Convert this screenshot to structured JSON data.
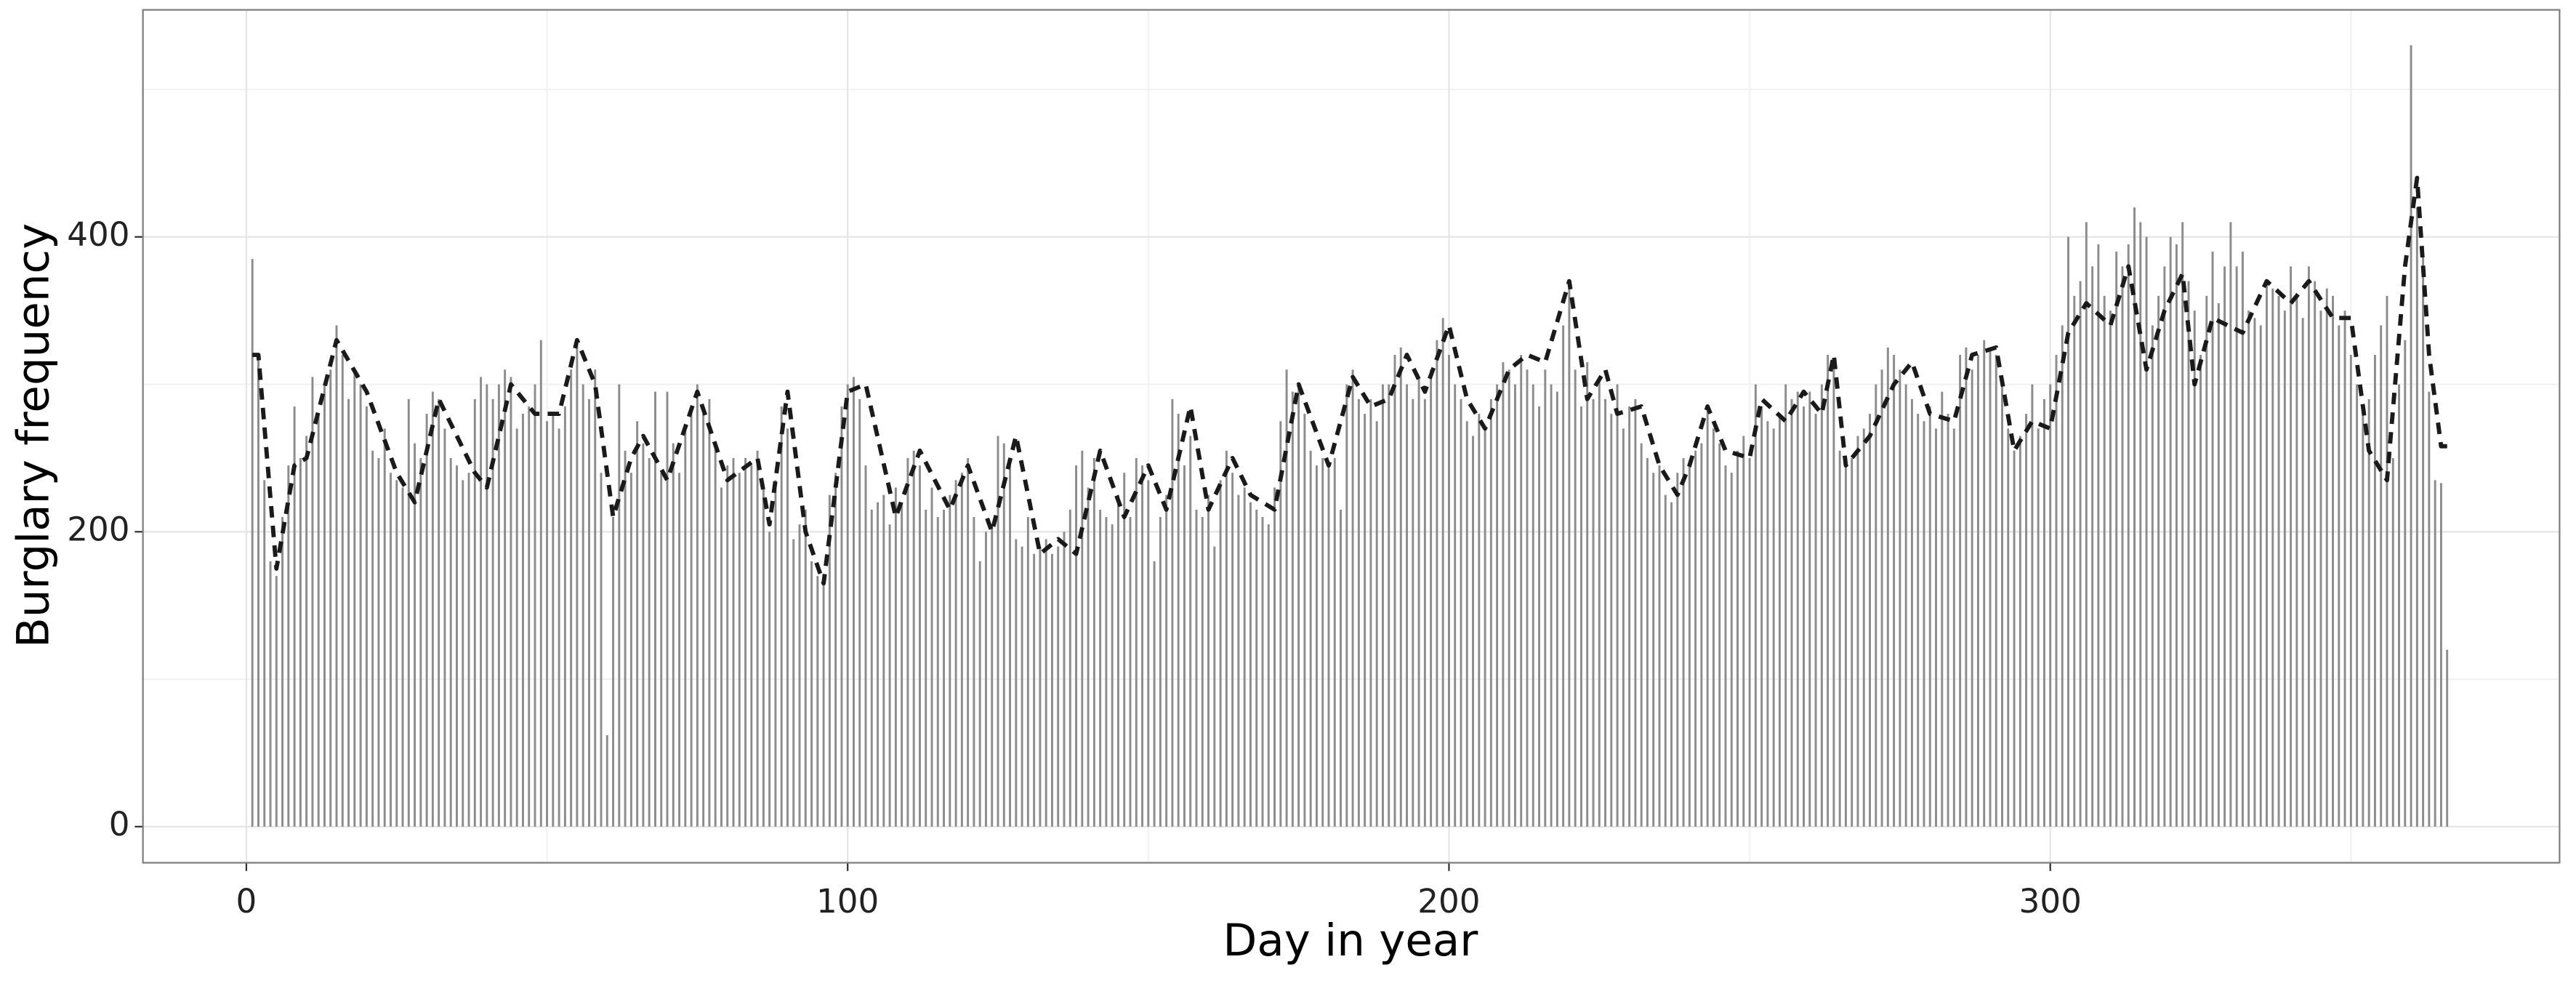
{
  "chart_data": {
    "type": "bar",
    "xlabel": "Day in year",
    "ylabel": "Burglary frequency",
    "xlim": [
      -17.2,
      384.7
    ],
    "ylim": [
      -24.5,
      554
    ],
    "xticks": [
      0,
      100,
      200,
      300
    ],
    "yticks": [
      0,
      200,
      400
    ],
    "x_minor_ticks": [
      50,
      150,
      250,
      350
    ],
    "y_minor_ticks": [
      100,
      300,
      500
    ],
    "grid": true,
    "series": [
      {
        "type": "bar",
        "color": "#8c8c8c",
        "x": [
          1,
          2,
          3,
          4,
          5,
          6,
          7,
          8,
          9,
          10,
          11,
          12,
          13,
          14,
          15,
          16,
          17,
          18,
          19,
          20,
          21,
          22,
          23,
          24,
          25,
          26,
          27,
          28,
          29,
          30,
          31,
          32,
          33,
          34,
          35,
          36,
          37,
          38,
          39,
          40,
          41,
          42,
          43,
          44,
          45,
          46,
          47,
          48,
          49,
          50,
          51,
          52,
          53,
          54,
          55,
          56,
          57,
          58,
          59,
          60,
          61,
          62,
          63,
          64,
          65,
          66,
          67,
          68,
          69,
          70,
          71,
          72,
          73,
          74,
          75,
          76,
          77,
          78,
          79,
          80,
          81,
          82,
          83,
          84,
          85,
          86,
          87,
          88,
          89,
          90,
          91,
          92,
          93,
          94,
          95,
          96,
          97,
          98,
          99,
          100,
          101,
          102,
          103,
          104,
          105,
          106,
          107,
          108,
          109,
          110,
          111,
          112,
          113,
          114,
          115,
          116,
          117,
          118,
          119,
          120,
          121,
          122,
          123,
          124,
          125,
          126,
          127,
          128,
          129,
          130,
          131,
          132,
          133,
          134,
          135,
          136,
          137,
          138,
          139,
          140,
          141,
          142,
          143,
          144,
          145,
          146,
          147,
          148,
          149,
          150,
          151,
          152,
          153,
          154,
          155,
          156,
          157,
          158,
          159,
          160,
          161,
          162,
          163,
          164,
          165,
          166,
          167,
          168,
          169,
          170,
          171,
          172,
          173,
          174,
          175,
          176,
          177,
          178,
          179,
          180,
          181,
          182,
          183,
          184,
          185,
          186,
          187,
          188,
          189,
          190,
          191,
          192,
          193,
          194,
          195,
          196,
          197,
          198,
          199,
          200,
          201,
          202,
          203,
          204,
          205,
          206,
          207,
          208,
          209,
          210,
          211,
          212,
          213,
          214,
          215,
          216,
          217,
          218,
          219,
          220,
          221,
          222,
          223,
          224,
          225,
          226,
          227,
          228,
          229,
          230,
          231,
          232,
          233,
          234,
          235,
          236,
          237,
          238,
          239,
          240,
          241,
          242,
          243,
          244,
          245,
          246,
          247,
          248,
          249,
          250,
          251,
          252,
          253,
          254,
          255,
          256,
          257,
          258,
          259,
          260,
          261,
          262,
          263,
          264,
          265,
          266,
          267,
          268,
          269,
          270,
          271,
          272,
          273,
          274,
          275,
          276,
          277,
          278,
          279,
          280,
          281,
          282,
          283,
          284,
          285,
          286,
          287,
          288,
          289,
          290,
          291,
          292,
          293,
          294,
          295,
          296,
          297,
          298,
          299,
          300,
          301,
          302,
          303,
          304,
          305,
          306,
          307,
          308,
          309,
          310,
          311,
          312,
          313,
          314,
          315,
          316,
          317,
          318,
          319,
          320,
          321,
          322,
          323,
          324,
          325,
          326,
          327,
          328,
          329,
          330,
          331,
          332,
          333,
          334,
          335,
          336,
          337,
          338,
          339,
          340,
          341,
          342,
          343,
          344,
          345,
          346,
          347,
          348,
          349,
          350,
          351,
          352,
          353,
          354,
          355,
          356,
          357,
          358,
          359,
          360,
          361,
          362,
          363,
          364,
          365,
          366
        ],
        "values": [
          385,
          320,
          235,
          180,
          170,
          210,
          245,
          285,
          250,
          265,
          305,
          280,
          300,
          310,
          340,
          320,
          290,
          310,
          300,
          285,
          255,
          250,
          270,
          240,
          235,
          230,
          290,
          260,
          250,
          280,
          295,
          290,
          270,
          250,
          245,
          235,
          240,
          290,
          305,
          300,
          290,
          300,
          310,
          305,
          270,
          280,
          285,
          300,
          330,
          275,
          280,
          270,
          285,
          310,
          330,
          300,
          290,
          310,
          240,
          62,
          210,
          300,
          255,
          240,
          275,
          260,
          250,
          295,
          240,
          295,
          260,
          240,
          270,
          285,
          300,
          280,
          290,
          260,
          230,
          245,
          250,
          240,
          250,
          245,
          255,
          230,
          200,
          235,
          285,
          270,
          195,
          205,
          215,
          180,
          170,
          165,
          225,
          240,
          285,
          300,
          305,
          290,
          245,
          215,
          220,
          225,
          205,
          230,
          220,
          250,
          255,
          245,
          215,
          230,
          210,
          215,
          225,
          235,
          240,
          250,
          210,
          180,
          200,
          205,
          265,
          260,
          250,
          195,
          190,
          210,
          185,
          190,
          195,
          185,
          190,
          200,
          215,
          245,
          255,
          230,
          250,
          215,
          210,
          205,
          225,
          240,
          210,
          250,
          245,
          235,
          180,
          210,
          225,
          290,
          280,
          245,
          265,
          215,
          210,
          225,
          190,
          235,
          255,
          240,
          225,
          230,
          220,
          215,
          210,
          205,
          230,
          275,
          310,
          295,
          300,
          280,
          255,
          245,
          250,
          245,
          250,
          215,
          300,
          310,
          290,
          280,
          290,
          275,
          300,
          300,
          320,
          325,
          300,
          290,
          305,
          290,
          310,
          330,
          345,
          320,
          300,
          290,
          275,
          265,
          280,
          270,
          290,
          300,
          315,
          310,
          300,
          320,
          310,
          300,
          285,
          310,
          300,
          295,
          340,
          370,
          310,
          285,
          315,
          290,
          305,
          290,
          280,
          300,
          270,
          285,
          290,
          260,
          250,
          240,
          245,
          225,
          220,
          240,
          250,
          245,
          255,
          260,
          285,
          270,
          260,
          245,
          240,
          255,
          265,
          250,
          300,
          285,
          275,
          270,
          280,
          300,
          290,
          295,
          285,
          295,
          280,
          300,
          320,
          310,
          255,
          245,
          250,
          265,
          270,
          280,
          300,
          310,
          325,
          320,
          310,
          300,
          290,
          280,
          275,
          285,
          270,
          295,
          280,
          270,
          320,
          325,
          310,
          320,
          330,
          325,
          320,
          300,
          270,
          255,
          265,
          280,
          300,
          270,
          290,
          300,
          320,
          340,
          400,
          360,
          370,
          410,
          380,
          395,
          360,
          350,
          390,
          380,
          395,
          420,
          410,
          400,
          340,
          360,
          380,
          400,
          395,
          410,
          370,
          350,
          320,
          360,
          390,
          355,
          380,
          410,
          380,
          390,
          350,
          345,
          340,
          370,
          365,
          360,
          350,
          380,
          360,
          345,
          380,
          370,
          350,
          365,
          360,
          340,
          350,
          320,
          300,
          280,
          290,
          320,
          340,
          360,
          250,
          300,
          330,
          530,
          420,
          390,
          295,
          235,
          233,
          120
        ]
      },
      {
        "type": "line",
        "color": "#1a1a1a",
        "dashed": true,
        "x": [
          1,
          2,
          5,
          8,
          10,
          15,
          20,
          25,
          28,
          32,
          38,
          40,
          44,
          48,
          52,
          55,
          58,
          61,
          64,
          66,
          70,
          75,
          80,
          85,
          87,
          90,
          93,
          96,
          100,
          103,
          108,
          112,
          117,
          120,
          124,
          128,
          132,
          135,
          138,
          142,
          146,
          150,
          153,
          157,
          160,
          164,
          167,
          171,
          175,
          180,
          184,
          187,
          190,
          193,
          196,
          200,
          203,
          206,
          210,
          213,
          216,
          220,
          223,
          226,
          228,
          232,
          235,
          238,
          240,
          243,
          246,
          250,
          252,
          256,
          259,
          262,
          264,
          266,
          270,
          274,
          277,
          280,
          284,
          287,
          291,
          294,
          297,
          300,
          303,
          306,
          310,
          313,
          316,
          319,
          322,
          324,
          327,
          332,
          336,
          340,
          343,
          347,
          350,
          353,
          356,
          359,
          361,
          363,
          365,
          366
        ],
        "values": [
          320,
          320,
          175,
          245,
          250,
          330,
          295,
          240,
          220,
          290,
          240,
          230,
          300,
          280,
          280,
          330,
          300,
          210,
          250,
          265,
          235,
          295,
          235,
          250,
          205,
          295,
          200,
          165,
          295,
          300,
          210,
          255,
          215,
          245,
          200,
          265,
          185,
          195,
          185,
          255,
          210,
          245,
          215,
          285,
          215,
          250,
          225,
          215,
          300,
          245,
          305,
          285,
          290,
          320,
          295,
          340,
          290,
          270,
          310,
          320,
          315,
          370,
          290,
          310,
          280,
          285,
          245,
          225,
          245,
          285,
          255,
          250,
          290,
          275,
          295,
          280,
          320,
          245,
          265,
          300,
          315,
          280,
          275,
          320,
          325,
          255,
          275,
          270,
          335,
          355,
          340,
          380,
          310,
          350,
          375,
          300,
          345,
          335,
          370,
          355,
          370,
          345,
          345,
          255,
          235,
          380,
          440,
          320,
          258,
          258
        ]
      }
    ]
  }
}
